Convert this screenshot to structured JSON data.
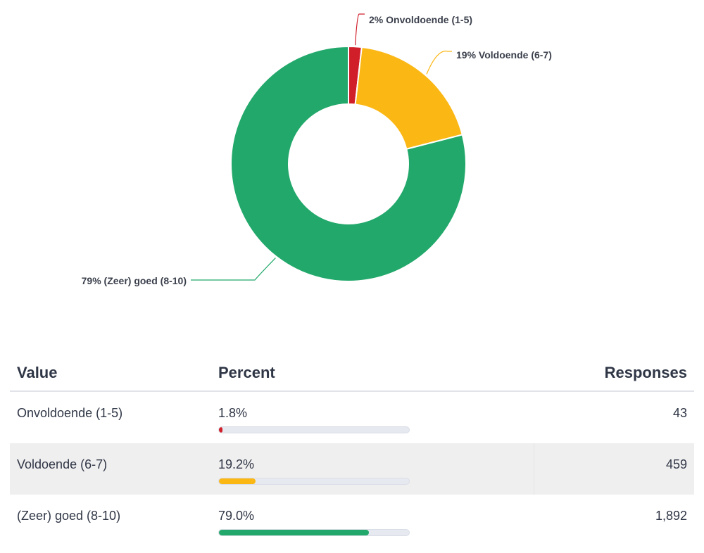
{
  "chart_data": {
    "type": "pie",
    "title": "",
    "categories": [
      "Onvoldoende (1-5)",
      "Voldoende (6-7)",
      "(Zeer) goed (8-10)"
    ],
    "values": [
      1.8,
      19.2,
      79.0
    ],
    "labels": [
      "2% Onvoldoende (1-5)",
      "19% Voldoende (6-7)",
      "79% (Zeer) goed (8-10)"
    ],
    "colors": [
      "#d11f2a",
      "#fbb714",
      "#21a86a"
    ],
    "donut": true
  },
  "table": {
    "headers": {
      "value": "Value",
      "percent": "Percent",
      "responses": "Responses"
    },
    "rows": [
      {
        "value": "Onvoldoende (1-5)",
        "percent": "1.8%",
        "responses": "43"
      },
      {
        "value": "Voldoende (6-7)",
        "percent": "19.2%",
        "responses": "459"
      },
      {
        "value": "(Zeer) goed (8-10)",
        "percent": "79.0%",
        "responses": "1,892"
      }
    ]
  }
}
